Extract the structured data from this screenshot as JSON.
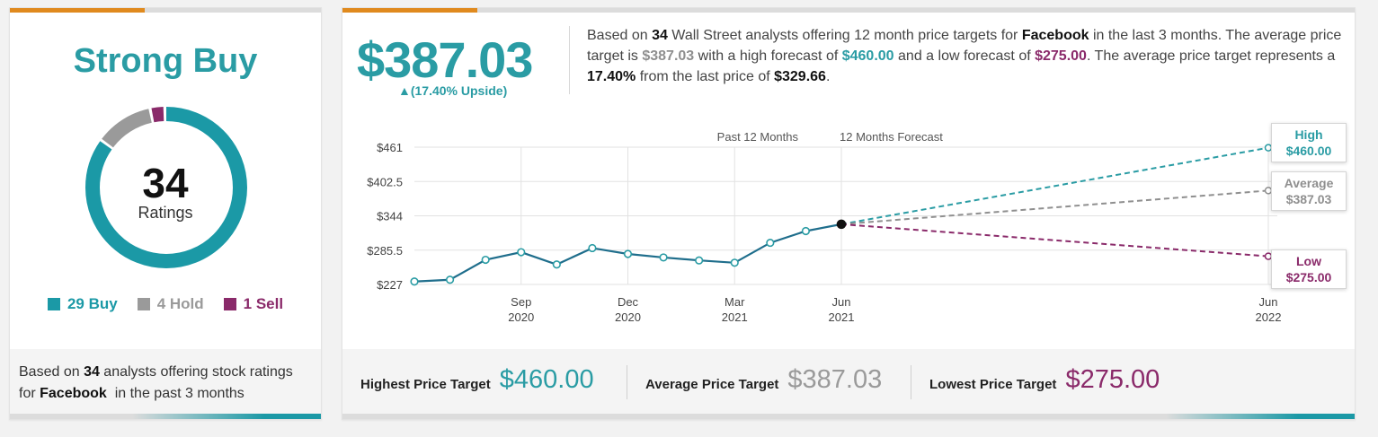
{
  "consensus": {
    "rating": "Strong Buy",
    "total": "34",
    "total_label": "Ratings",
    "buy": {
      "count": 29,
      "label": "29 Buy",
      "color": "#1b99a6"
    },
    "hold": {
      "count": 4,
      "label": "4 Hold",
      "color": "#9a9a9a"
    },
    "sell": {
      "count": 1,
      "label": "1 Sell",
      "color": "#8a2a6a"
    },
    "footer": {
      "pre": "Based on ",
      "count": "34",
      "mid": " analysts offering stock ratings for ",
      "company": "Facebook",
      "post": "  in the past 3 months"
    }
  },
  "header": {
    "price": "$387.03",
    "upside": "▲(17.40% Upside)"
  },
  "summary": {
    "t1": "Based on ",
    "analysts": "34",
    "t2": " Wall Street analysts offering 12 month price targets for ",
    "company": "Facebook",
    "t3": " in the last 3 months. The average price target is ",
    "avg": "$387.03",
    "t4": " with a high forecast of ",
    "high": "$460.00",
    "t5": " and a low forecast of ",
    "low": "$275.00",
    "t6": ". The average price target represents a ",
    "pct": "17.40%",
    "t7": " from the last price of ",
    "last": "$329.66",
    "t8": "."
  },
  "targets": {
    "high_label": "Highest Price Target",
    "high_value": "$460.00",
    "avg_label": "Average Price Target",
    "avg_value": "$387.03",
    "low_label": "Lowest Price Target",
    "low_value": "$275.00"
  },
  "colors": {
    "teal": "#2a9ca4",
    "gray": "#8f8f8f",
    "purple": "#8a2a6a",
    "line": "#1f6e8c",
    "orange": "#e08a1e"
  },
  "chart_data": {
    "type": "line",
    "section_labels": [
      "Past 12 Months",
      "12 Months Forecast"
    ],
    "y_ticks": [
      {
        "value": 461,
        "label": "$461"
      },
      {
        "value": 402.5,
        "label": "$402.5"
      },
      {
        "value": 344,
        "label": "$344"
      },
      {
        "value": 285.5,
        "label": "$285.5"
      },
      {
        "value": 227,
        "label": "$227"
      }
    ],
    "ylim": [
      227,
      461
    ],
    "x_ticks": [
      {
        "month": 3,
        "label1": "Sep",
        "label2": "2020"
      },
      {
        "month": 6,
        "label1": "Dec",
        "label2": "2020"
      },
      {
        "month": 9,
        "label1": "Mar",
        "label2": "2021"
      },
      {
        "month": 12,
        "label1": "Jun",
        "label2": "2021"
      },
      {
        "month": 24,
        "label1": "Jun",
        "label2": "2022"
      }
    ],
    "history": {
      "name": "Price",
      "points": [
        {
          "month": 0,
          "price": 232
        },
        {
          "month": 1,
          "price": 235
        },
        {
          "month": 2,
          "price": 269
        },
        {
          "month": 3,
          "price": 282
        },
        {
          "month": 4,
          "price": 261
        },
        {
          "month": 5,
          "price": 289
        },
        {
          "month": 6,
          "price": 279
        },
        {
          "month": 7,
          "price": 273
        },
        {
          "month": 8,
          "price": 268
        },
        {
          "month": 9,
          "price": 264
        },
        {
          "month": 10,
          "price": 298
        },
        {
          "month": 11,
          "price": 318
        },
        {
          "month": 12,
          "price": 329.66
        }
      ]
    },
    "forecasts": [
      {
        "name": "High",
        "value": 460.0,
        "value_label": "$460.00",
        "color": "#2a9ca4"
      },
      {
        "name": "Average",
        "value": 387.03,
        "value_label": "$387.03",
        "color": "#8f8f8f"
      },
      {
        "name": "Low",
        "value": 275.0,
        "value_label": "$275.00",
        "color": "#8a2a6a"
      }
    ]
  }
}
